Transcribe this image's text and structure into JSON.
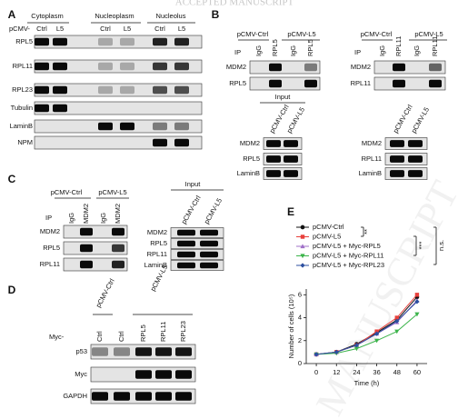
{
  "header": "ACCEPTED MANUSCRIPT",
  "watermark": "MANUSCRIPT",
  "panel_a": {
    "label": "A",
    "fraction_labels": [
      "Cytoplasm",
      "Nucleoplasm",
      "Nucleolus"
    ],
    "row_prefix": "pCMV-",
    "lane_labels": [
      "Ctrl",
      "L5",
      "Ctrl",
      "L5",
      "Ctrl",
      "L5"
    ],
    "row_labels": [
      "RPL5",
      "RPL11",
      "RPL23",
      "Tubulin",
      "LaminB",
      "NPM"
    ]
  },
  "panel_b": {
    "label": "B",
    "left": {
      "group_labels": [
        "pCMV-Ctrl",
        "pCMV-L5"
      ],
      "ip_label": "IP",
      "lane_labels": [
        "IgG",
        "RPL5",
        "IgG",
        "RPL5"
      ],
      "ip_rows": [
        "MDM2",
        "RPL5"
      ],
      "input_label": "Input",
      "input_lanes": [
        "pCMV-Ctrl",
        "pCMV-L5"
      ],
      "input_rows": [
        "MDM2",
        "RPL5",
        "LaminB"
      ]
    },
    "right": {
      "group_labels": [
        "pCMV-Ctrl",
        "pCMV-L5"
      ],
      "ip_label": "IP",
      "lane_labels": [
        "IgG",
        "RPL11",
        "IgG",
        "RPL11"
      ],
      "ip_rows": [
        "MDM2",
        "RPL11"
      ],
      "input_lanes": [
        "pCMV-Ctrl",
        "pCMV-L5"
      ],
      "input_rows": [
        "MDM2",
        "RPL11",
        "LaminB"
      ]
    }
  },
  "panel_c": {
    "label": "C",
    "group_labels": [
      "pCMV-Ctrl",
      "pCMV-L5"
    ],
    "ip_label": "IP",
    "lane_labels": [
      "IgG",
      "MDM2",
      "IgG",
      "MDM2"
    ],
    "ip_rows": [
      "MDM2",
      "RPL5",
      "RPL11"
    ],
    "input_label": "Input",
    "input_lanes": [
      "pCMV-Ctrl",
      "pCMV-L5"
    ],
    "input_rows": [
      "MDM2",
      "RPL5",
      "RPL11",
      "LaminB"
    ]
  },
  "panel_d": {
    "label": "D",
    "group_labels": [
      "pCMV-Ctrl",
      "pCMV-L5"
    ],
    "lane_prefix": "Myc-",
    "lane_labels": [
      "Ctrl",
      "Ctrl",
      "RPL5",
      "RPL11",
      "RPL23"
    ],
    "row_labels": [
      "p53",
      "Myc",
      "GAPDH"
    ]
  },
  "chart_data": {
    "type": "line",
    "panel_label": "E",
    "x_label": "Time (h)",
    "y_label": "Number of cells (10⁵)",
    "x": [
      0,
      12,
      24,
      36,
      48,
      60
    ],
    "xlim": [
      -6,
      66
    ],
    "xticks": [
      0,
      12,
      24,
      36,
      48,
      60
    ],
    "ylim": [
      0,
      6.5
    ],
    "yticks": [
      0,
      2,
      4,
      6
    ],
    "series": [
      {
        "name": "pCMV-Ctrl",
        "color": "#111111",
        "marker": "circle",
        "values": [
          0.8,
          1.0,
          1.7,
          2.7,
          3.8,
          5.8
        ]
      },
      {
        "name": "pCMV-L5",
        "color": "#e8403c",
        "marker": "square",
        "values": [
          0.8,
          1.0,
          1.6,
          2.8,
          4.0,
          6.0
        ]
      },
      {
        "name": "pCMV-L5 + Myc-RPL5",
        "color": "#a070c8",
        "marker": "triangle",
        "values": [
          0.8,
          1.0,
          1.6,
          2.6,
          3.6,
          5.5
        ]
      },
      {
        "name": "pCMV-L5 + Myc-RPL11",
        "color": "#3cb44b",
        "marker": "triangle-down",
        "values": [
          0.8,
          0.9,
          1.3,
          2.0,
          2.8,
          4.3
        ]
      },
      {
        "name": "pCMV-L5 + Myc-RPL23",
        "color": "#2c4fa0",
        "marker": "diamond",
        "values": [
          0.8,
          1.0,
          1.6,
          2.6,
          3.7,
          5.4
        ]
      }
    ],
    "annotations": [
      "**",
      "***",
      "n.s."
    ]
  }
}
